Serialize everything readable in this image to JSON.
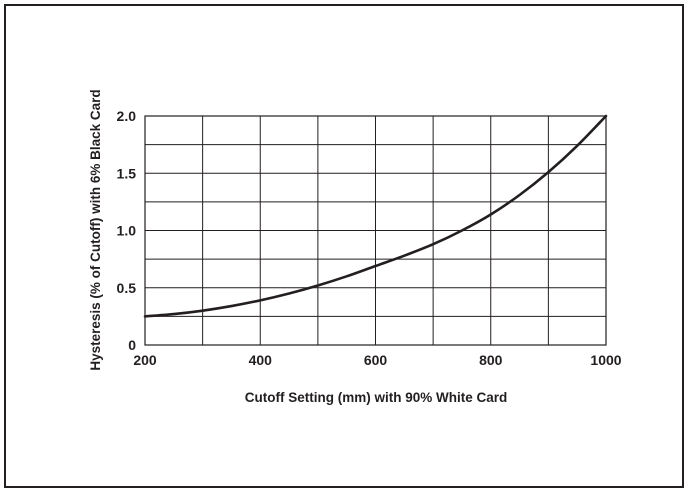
{
  "chart_data": {
    "type": "line",
    "title": "",
    "xlabel": "Cutoff Setting (mm) with 90% White Card",
    "ylabel": "Hysteresis (% of Cutoff) with 6% Black Card",
    "xlim": [
      200,
      1000
    ],
    "ylim": [
      0,
      2.0
    ],
    "grid": true,
    "x_ticks": [
      "200",
      "400",
      "600",
      "800",
      "1000"
    ],
    "y_ticks": [
      "0",
      "0.5",
      "1.0",
      "1.5",
      "2.0"
    ],
    "series": [
      {
        "x": [
          200,
          250,
          300,
          350,
          400,
          450,
          500,
          550,
          600,
          650,
          700,
          750,
          800,
          850,
          900,
          950,
          1000
        ],
        "values": [
          0.25,
          0.27,
          0.3,
          0.34,
          0.39,
          0.45,
          0.52,
          0.6,
          0.69,
          0.78,
          0.88,
          1.0,
          1.14,
          1.31,
          1.51,
          1.74,
          2.0
        ]
      }
    ]
  },
  "colors": {
    "ink": "#231f20",
    "background": "#ffffff"
  }
}
